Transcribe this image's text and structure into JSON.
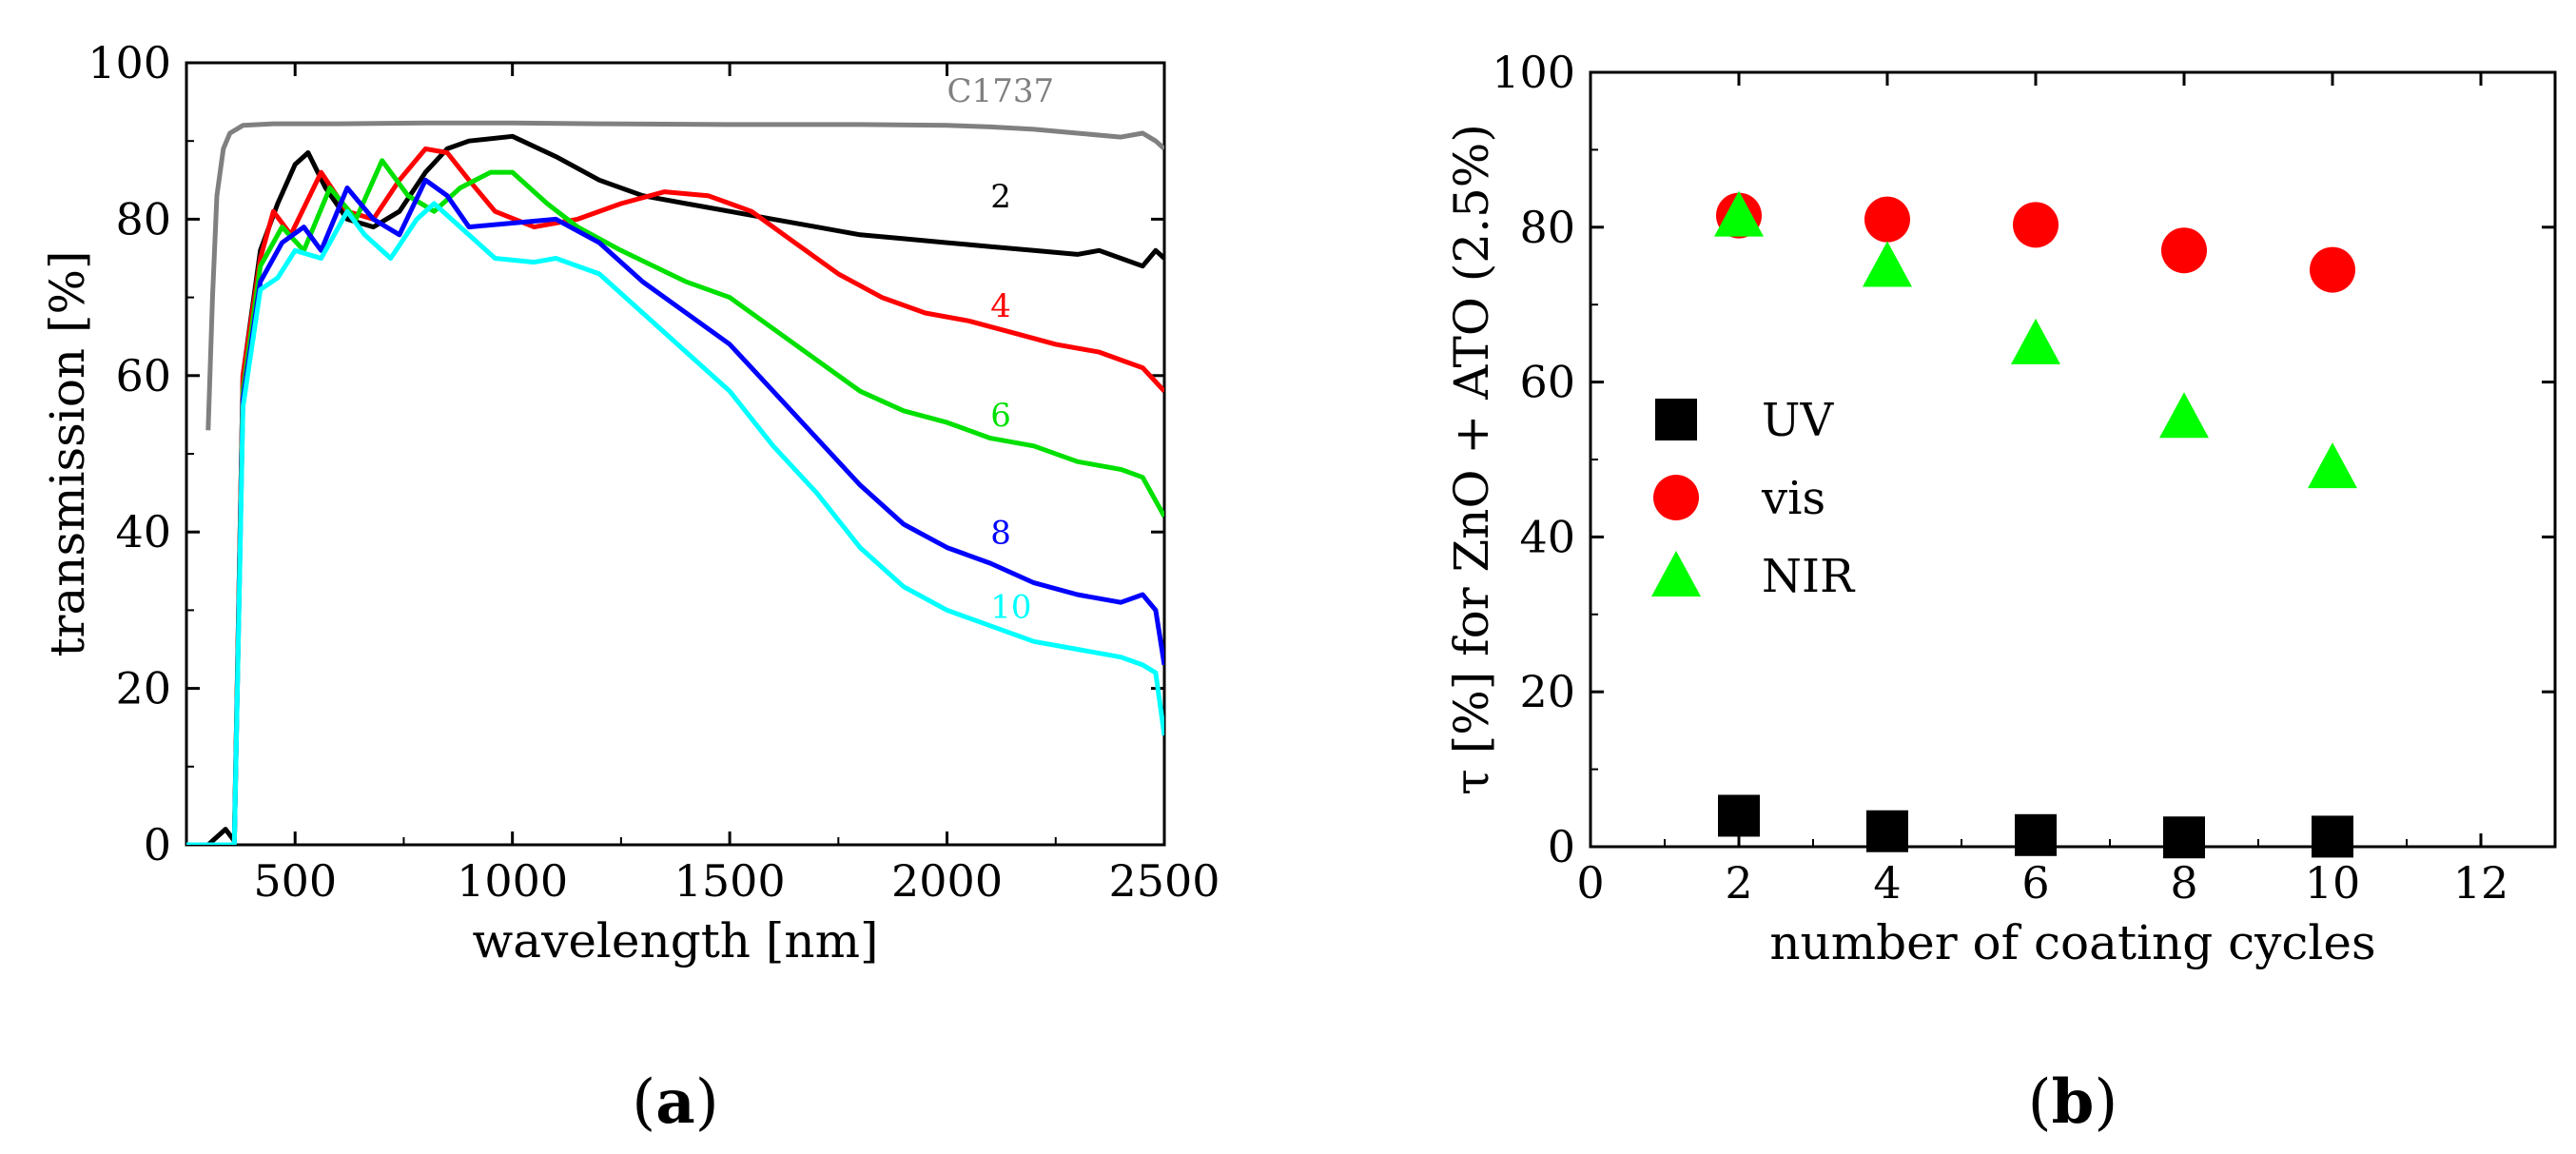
{
  "chart_data": [
    {
      "panel": "(a)",
      "panel_letter": "a",
      "type": "line",
      "xlabel": "wavelength [nm]",
      "ylabel": "transmission [%]",
      "xlim": [
        250,
        2500
      ],
      "ylim": [
        0,
        100
      ],
      "xticks": [
        500,
        1000,
        1500,
        2000,
        2500
      ],
      "yticks": [
        0,
        20,
        40,
        60,
        80,
        100
      ],
      "grid": false,
      "series": [
        {
          "name": "C1737",
          "color": "#808080",
          "label_at": [
            2000,
            95
          ],
          "points": [
            [
              300,
              53
            ],
            [
              310,
              70
            ],
            [
              320,
              83
            ],
            [
              335,
              89
            ],
            [
              350,
              91
            ],
            [
              380,
              92
            ],
            [
              450,
              92.2
            ],
            [
              600,
              92.2
            ],
            [
              800,
              92.3
            ],
            [
              1000,
              92.3
            ],
            [
              1200,
              92.2
            ],
            [
              1500,
              92.1
            ],
            [
              1800,
              92.1
            ],
            [
              2000,
              92
            ],
            [
              2100,
              91.8
            ],
            [
              2200,
              91.5
            ],
            [
              2300,
              91
            ],
            [
              2400,
              90.5
            ],
            [
              2450,
              91
            ],
            [
              2480,
              90
            ],
            [
              2500,
              89
            ]
          ]
        },
        {
          "name": "2",
          "color": "#000000",
          "label_at": [
            2100,
            81.5
          ],
          "points": [
            [
              250,
              0
            ],
            [
              300,
              0
            ],
            [
              320,
              1
            ],
            [
              340,
              2
            ],
            [
              360,
              0.5
            ],
            [
              380,
              60
            ],
            [
              420,
              76
            ],
            [
              460,
              82
            ],
            [
              500,
              87
            ],
            [
              530,
              88.5
            ],
            [
              570,
              84
            ],
            [
              620,
              80
            ],
            [
              680,
              79
            ],
            [
              740,
              81
            ],
            [
              800,
              86
            ],
            [
              850,
              89
            ],
            [
              900,
              90
            ],
            [
              1000,
              90.6
            ],
            [
              1100,
              88
            ],
            [
              1200,
              85
            ],
            [
              1300,
              83
            ],
            [
              1400,
              82
            ],
            [
              1500,
              81
            ],
            [
              1600,
              80
            ],
            [
              1700,
              79
            ],
            [
              1800,
              78
            ],
            [
              1900,
              77.5
            ],
            [
              2000,
              77
            ],
            [
              2100,
              76.5
            ],
            [
              2200,
              76
            ],
            [
              2300,
              75.5
            ],
            [
              2350,
              76
            ],
            [
              2400,
              75
            ],
            [
              2450,
              74
            ],
            [
              2480,
              76
            ],
            [
              2500,
              75
            ]
          ]
        },
        {
          "name": "4",
          "color": "#ff0000",
          "label_at": [
            2100,
            67.5
          ],
          "points": [
            [
              250,
              0
            ],
            [
              360,
              0
            ],
            [
              380,
              60
            ],
            [
              420,
              75
            ],
            [
              450,
              81
            ],
            [
              490,
              78
            ],
            [
              560,
              86
            ],
            [
              620,
              81
            ],
            [
              680,
              80
            ],
            [
              740,
              85
            ],
            [
              800,
              89
            ],
            [
              850,
              88.5
            ],
            [
              900,
              85
            ],
            [
              960,
              81
            ],
            [
              1050,
              79
            ],
            [
              1150,
              80
            ],
            [
              1250,
              82
            ],
            [
              1350,
              83.5
            ],
            [
              1450,
              83
            ],
            [
              1550,
              81
            ],
            [
              1650,
              77
            ],
            [
              1750,
              73
            ],
            [
              1850,
              70
            ],
            [
              1950,
              68
            ],
            [
              2050,
              67
            ],
            [
              2150,
              65.5
            ],
            [
              2250,
              64
            ],
            [
              2350,
              63
            ],
            [
              2400,
              62
            ],
            [
              2450,
              61
            ],
            [
              2500,
              58
            ]
          ]
        },
        {
          "name": "6",
          "color": "#00e000",
          "label_at": [
            2100,
            53.5
          ],
          "points": [
            [
              250,
              0
            ],
            [
              360,
              0
            ],
            [
              380,
              58
            ],
            [
              420,
              74
            ],
            [
              470,
              79
            ],
            [
              520,
              76
            ],
            [
              580,
              84
            ],
            [
              640,
              80
            ],
            [
              700,
              87.5
            ],
            [
              760,
              83
            ],
            [
              820,
              81
            ],
            [
              880,
              84
            ],
            [
              950,
              86
            ],
            [
              1000,
              86
            ],
            [
              1080,
              82
            ],
            [
              1150,
              79
            ],
            [
              1250,
              76
            ],
            [
              1400,
              72
            ],
            [
              1500,
              70
            ],
            [
              1600,
              66
            ],
            [
              1700,
              62
            ],
            [
              1800,
              58
            ],
            [
              1900,
              55.5
            ],
            [
              2000,
              54
            ],
            [
              2100,
              52
            ],
            [
              2200,
              51
            ],
            [
              2300,
              49
            ],
            [
              2400,
              48
            ],
            [
              2450,
              47
            ],
            [
              2500,
              42
            ]
          ]
        },
        {
          "name": "8",
          "color": "#0000ff",
          "label_at": [
            2100,
            38.5
          ],
          "points": [
            [
              250,
              0
            ],
            [
              360,
              0
            ],
            [
              380,
              57
            ],
            [
              420,
              72
            ],
            [
              470,
              77
            ],
            [
              520,
              79
            ],
            [
              560,
              76
            ],
            [
              620,
              84
            ],
            [
              680,
              80
            ],
            [
              740,
              78
            ],
            [
              800,
              85
            ],
            [
              850,
              83
            ],
            [
              900,
              79
            ],
            [
              1000,
              79.5
            ],
            [
              1100,
              80
            ],
            [
              1200,
              77
            ],
            [
              1300,
              72
            ],
            [
              1400,
              68
            ],
            [
              1500,
              64
            ],
            [
              1600,
              58
            ],
            [
              1700,
              52
            ],
            [
              1800,
              46
            ],
            [
              1900,
              41
            ],
            [
              2000,
              38
            ],
            [
              2100,
              36
            ],
            [
              2200,
              33.5
            ],
            [
              2300,
              32
            ],
            [
              2400,
              31
            ],
            [
              2450,
              32
            ],
            [
              2480,
              30
            ],
            [
              2500,
              23
            ]
          ]
        },
        {
          "name": "10",
          "color": "#00ffff",
          "label_at": [
            2100,
            29
          ],
          "points": [
            [
              250,
              0
            ],
            [
              360,
              0
            ],
            [
              380,
              56
            ],
            [
              420,
              71
            ],
            [
              460,
              72.5
            ],
            [
              500,
              76
            ],
            [
              560,
              75
            ],
            [
              620,
              81
            ],
            [
              660,
              78
            ],
            [
              720,
              75
            ],
            [
              780,
              80
            ],
            [
              820,
              82
            ],
            [
              880,
              79
            ],
            [
              960,
              75
            ],
            [
              1050,
              74.5
            ],
            [
              1100,
              75
            ],
            [
              1200,
              73
            ],
            [
              1300,
              68
            ],
            [
              1400,
              63
            ],
            [
              1500,
              58
            ],
            [
              1600,
              51
            ],
            [
              1700,
              45
            ],
            [
              1800,
              38
            ],
            [
              1900,
              33
            ],
            [
              2000,
              30
            ],
            [
              2100,
              28
            ],
            [
              2200,
              26
            ],
            [
              2300,
              25
            ],
            [
              2400,
              24
            ],
            [
              2450,
              23
            ],
            [
              2480,
              22
            ],
            [
              2500,
              14
            ]
          ]
        }
      ]
    },
    {
      "panel": "(b)",
      "panel_letter": "b",
      "type": "scatter",
      "xlabel": "number of coating cycles",
      "ylabel": "τ [%] for ZnO + ATO (2.5%)",
      "xlim": [
        0,
        13
      ],
      "ylim": [
        0,
        100
      ],
      "xticks": [
        0,
        2,
        4,
        6,
        8,
        10,
        12
      ],
      "yticks": [
        0,
        20,
        40,
        60,
        80,
        100
      ],
      "grid": false,
      "legend_position": "center-left",
      "x": [
        2,
        4,
        6,
        8,
        10
      ],
      "series": [
        {
          "name": "UV",
          "marker": "square",
          "color": "#000000",
          "values": [
            4,
            2,
            1.5,
            1.2,
            1.3
          ]
        },
        {
          "name": "vis",
          "marker": "circle",
          "color": "#ff0000",
          "values": [
            81.5,
            81,
            80.3,
            77,
            74.5
          ]
        },
        {
          "name": "NIR",
          "marker": "triangle",
          "color": "#00ff00",
          "values": [
            81.5,
            75,
            65,
            55.5,
            49
          ]
        }
      ]
    }
  ]
}
